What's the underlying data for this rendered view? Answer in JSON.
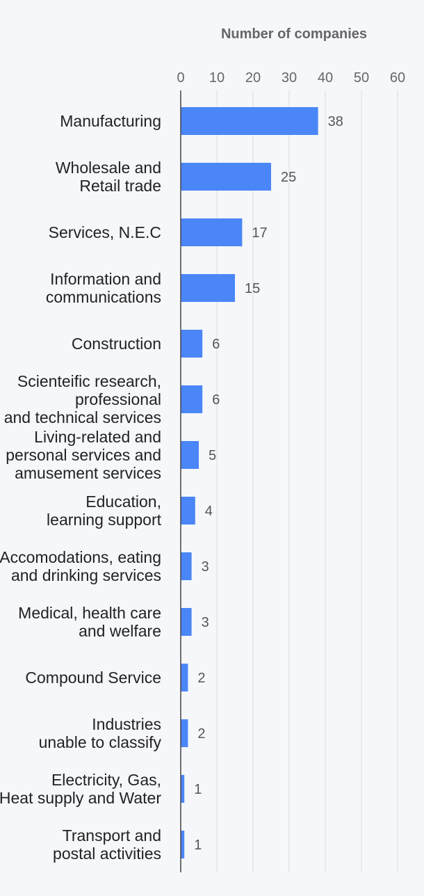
{
  "chart_data": {
    "type": "bar",
    "orientation": "horizontal",
    "title": "",
    "xlabel": "Number of companies",
    "ylabel": "",
    "xlim": [
      0,
      60
    ],
    "ticks": [
      "0",
      "10",
      "20",
      "30",
      "40",
      "50",
      "60"
    ],
    "grid": true,
    "bar_color": "#4a86f7",
    "categories": [
      [
        "Manufacturing"
      ],
      [
        "Wholesale and",
        "Retail trade"
      ],
      [
        "Services, N.E.C"
      ],
      [
        "Information and",
        "communications"
      ],
      [
        "Construction"
      ],
      [
        "Scienteific research,",
        "professional",
        "and technical services"
      ],
      [
        "Living-related and",
        "personal services and",
        "amusement services"
      ],
      [
        "Education,",
        "learning support"
      ],
      [
        "Accomodations, eating",
        "and drinking services"
      ],
      [
        "Medical, health care",
        "and welfare"
      ],
      [
        "Compound Service"
      ],
      [
        "Industries",
        "unable to classify"
      ],
      [
        "Electricity, Gas,",
        "Heat supply and Water"
      ],
      [
        "Transport and",
        "postal activities"
      ]
    ],
    "values": [
      38,
      25,
      17,
      15,
      6,
      6,
      5,
      4,
      3,
      3,
      2,
      2,
      1,
      1
    ]
  }
}
